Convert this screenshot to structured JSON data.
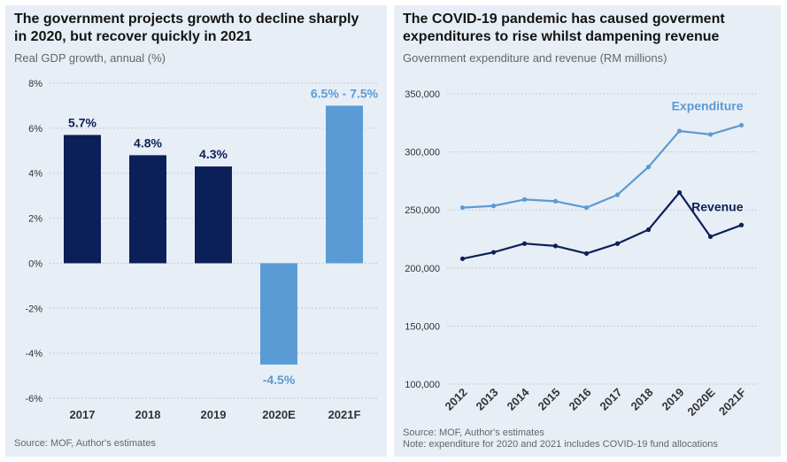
{
  "chart_data": [
    {
      "type": "bar",
      "title": "The government projects growth to decline sharply\nin 2020, but recover quickly in 2021",
      "subtitle": "Real GDP growth, annual (%)",
      "source": "Source: MOF, Author's estimates",
      "categories": [
        "2017",
        "2018",
        "2019",
        "2020E",
        "2021F"
      ],
      "values": [
        5.7,
        4.8,
        4.3,
        -4.5,
        7.0
      ],
      "data_labels": [
        "5.7%",
        "4.8%",
        "4.3%",
        "-4.5%",
        "6.5% - 7.5%"
      ],
      "bar_colors": [
        "#0b2058",
        "#0b2058",
        "#0b2058",
        "#5b9bd5",
        "#5b9bd5"
      ],
      "ylim": [
        -6,
        8
      ],
      "y_ticks": [
        8,
        6,
        4,
        2,
        0,
        -2,
        -4,
        -6
      ],
      "y_tick_labels": [
        "8%",
        "6%",
        "4%",
        "2%",
        "0%",
        "-2%",
        "-4%",
        "-6%"
      ],
      "grid": true
    },
    {
      "type": "line",
      "title": "The COVID-19 pandemic has caused goverment\nexpenditures to rise whilst dampening revenue",
      "subtitle": "Government expenditure and revenue (RM millions)",
      "source": "Source: MOF, Author's estimates\nNote: expenditure for 2020 and 2021 includes COVID-19 fund allocations",
      "x": [
        "2012",
        "2013",
        "2014",
        "2015",
        "2016",
        "2017",
        "2018",
        "2019",
        "2020E",
        "2021F"
      ],
      "series": [
        {
          "name": "Expenditure",
          "color": "#5b9bd5",
          "values": [
            252000,
            253500,
            259000,
            257500,
            252000,
            263000,
            287000,
            318000,
            315000,
            323000
          ]
        },
        {
          "name": "Revenue",
          "color": "#0b2058",
          "values": [
            208000,
            213500,
            221000,
            219000,
            212500,
            221000,
            233000,
            265000,
            227000,
            237000
          ]
        }
      ],
      "ylim": [
        100000,
        350000
      ],
      "y_ticks": [
        350000,
        300000,
        250000,
        200000,
        150000,
        100000
      ],
      "y_tick_labels": [
        "350,000",
        "300,000",
        "250,000",
        "200,000",
        "150,000",
        "100,000"
      ],
      "grid": true
    }
  ]
}
